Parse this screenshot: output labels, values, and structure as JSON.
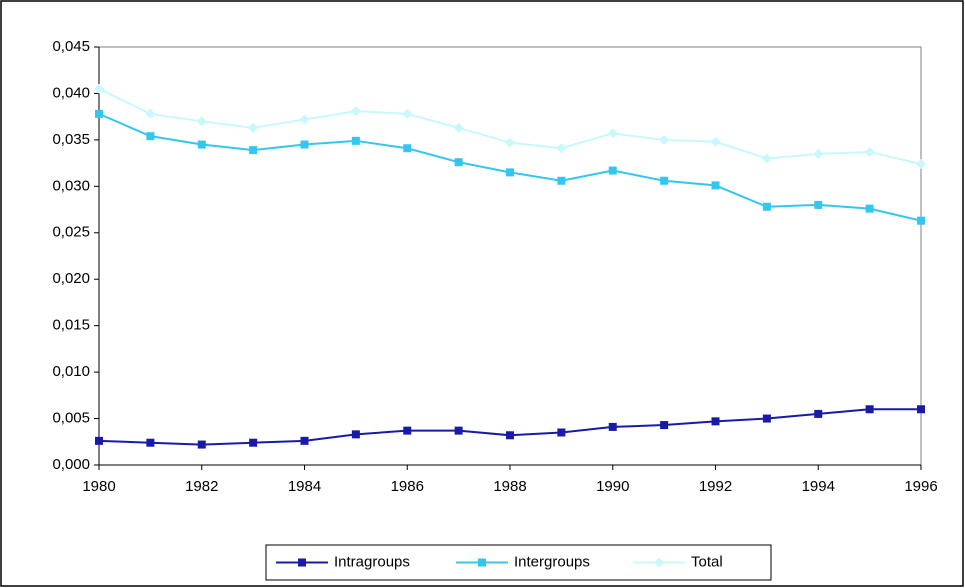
{
  "chart_data": {
    "type": "line",
    "x": [
      1980,
      1981,
      1982,
      1983,
      1984,
      1985,
      1986,
      1987,
      1988,
      1989,
      1990,
      1991,
      1992,
      1993,
      1994,
      1995,
      1996
    ],
    "series": [
      {
        "name": "Intragroups",
        "color": "#1a1aa8",
        "marker": "square",
        "values": [
          0.0026,
          0.0024,
          0.0022,
          0.0024,
          0.0026,
          0.0033,
          0.0037,
          0.0037,
          0.0032,
          0.0035,
          0.0041,
          0.0043,
          0.0047,
          0.005,
          0.0055,
          0.006,
          0.006
        ]
      },
      {
        "name": "Intergroups",
        "color": "#33c6ee",
        "marker": "square",
        "values": [
          0.0378,
          0.0354,
          0.0345,
          0.0339,
          0.0345,
          0.0349,
          0.0341,
          0.0326,
          0.0315,
          0.0306,
          0.0317,
          0.0306,
          0.0301,
          0.0278,
          0.028,
          0.0276,
          0.0263
        ]
      },
      {
        "name": "Total",
        "color": "#c8f8fc",
        "marker": "diamond",
        "values": [
          0.0405,
          0.0378,
          0.037,
          0.0363,
          0.0372,
          0.0381,
          0.0378,
          0.0363,
          0.0347,
          0.0341,
          0.0357,
          0.035,
          0.0348,
          0.033,
          0.0335,
          0.0337,
          0.0324
        ]
      }
    ],
    "xlim": [
      1980,
      1996
    ],
    "xticks": [
      1980,
      1982,
      1984,
      1986,
      1988,
      1990,
      1992,
      1994,
      1996
    ],
    "ylim": [
      0,
      0.045
    ],
    "yticks": [
      {
        "value": 0,
        "label": "0,000"
      },
      {
        "value": 0.005,
        "label": "0,005"
      },
      {
        "value": 0.01,
        "label": "0,010"
      },
      {
        "value": 0.015,
        "label": "0,015"
      },
      {
        "value": 0.02,
        "label": "0,020"
      },
      {
        "value": 0.025,
        "label": "0,025"
      },
      {
        "value": 0.03,
        "label": "0,030"
      },
      {
        "value": 0.035,
        "label": "0,035"
      },
      {
        "value": 0.04,
        "label": "0,040"
      },
      {
        "value": 0.045,
        "label": "0,045"
      }
    ],
    "grid": false,
    "legend": "bottom"
  }
}
